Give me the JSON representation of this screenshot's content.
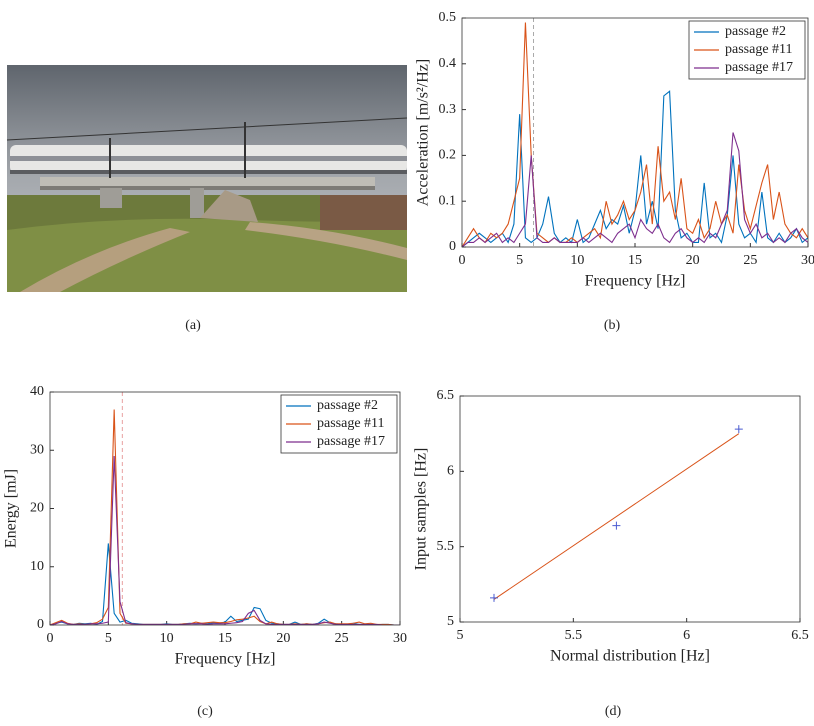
{
  "captions": [
    "(a)",
    "(b)",
    "(c)",
    "(d)"
  ],
  "chart_data": [
    {
      "type": "line",
      "xlabel": "Frequency [Hz]",
      "ylabel": "Acceleration [m/s²/Hz]",
      "xlim": [
        0,
        30
      ],
      "ylim": [
        0,
        0.5
      ],
      "xticks": [
        0,
        5,
        10,
        15,
        20,
        25,
        30
      ],
      "yticks": [
        0,
        0.1,
        0.2,
        0.3,
        0.4,
        0.5
      ],
      "vline": 6.2,
      "vline_color": "#aaaaaa",
      "legend": "upper right",
      "x": [
        0,
        0.5,
        1,
        1.5,
        2,
        2.5,
        3,
        3.5,
        4,
        4.5,
        5,
        5.5,
        6,
        6.5,
        7,
        7.5,
        8,
        8.5,
        9,
        9.5,
        10,
        10.5,
        11,
        11.5,
        12,
        12.5,
        13,
        13.5,
        14,
        14.5,
        15,
        15.5,
        16,
        16.5,
        17,
        17.5,
        18,
        18.5,
        19,
        19.5,
        20,
        20.5,
        21,
        21.5,
        22,
        22.5,
        23,
        23.5,
        24,
        24.5,
        25,
        25.5,
        26,
        26.5,
        27,
        27.5,
        28,
        28.5,
        29,
        29.5,
        30
      ],
      "series": [
        {
          "name": "passage #2",
          "color": "#0072bd",
          "values": [
            0,
            0.01,
            0.02,
            0.03,
            0.02,
            0.01,
            0.02,
            0.03,
            0.01,
            0.05,
            0.29,
            0.02,
            0.01,
            0.02,
            0.05,
            0.11,
            0.03,
            0.01,
            0.02,
            0.01,
            0.06,
            0.01,
            0.02,
            0.05,
            0.08,
            0.04,
            0.06,
            0.05,
            0.09,
            0.03,
            0.08,
            0.2,
            0.05,
            0.1,
            0.04,
            0.33,
            0.34,
            0.08,
            0.02,
            0.03,
            0.01,
            0.01,
            0.14,
            0.02,
            0.03,
            0.01,
            0.07,
            0.2,
            0.05,
            0.02,
            0.03,
            0.01,
            0.12,
            0.02,
            0.01,
            0.03,
            0.01,
            0.02,
            0.04,
            0.01,
            0.02
          ]
        },
        {
          "name": "passage #11",
          "color": "#d95319",
          "values": [
            0,
            0.02,
            0.04,
            0.02,
            0.01,
            0.03,
            0.02,
            0.03,
            0.05,
            0.1,
            0.15,
            0.49,
            0.2,
            0.03,
            0.02,
            0.01,
            0.02,
            0.01,
            0.01,
            0.02,
            0.01,
            0.02,
            0.03,
            0.04,
            0.02,
            0.1,
            0.05,
            0.07,
            0.1,
            0.06,
            0.08,
            0.12,
            0.18,
            0.05,
            0.22,
            0.1,
            0.12,
            0.06,
            0.15,
            0.04,
            0.03,
            0.06,
            0.02,
            0.04,
            0.1,
            0.05,
            0.07,
            0.03,
            0.18,
            0.08,
            0.04,
            0.09,
            0.14,
            0.18,
            0.06,
            0.12,
            0.05,
            0.03,
            0.02,
            0.04,
            0.02
          ]
        },
        {
          "name": "passage #17",
          "color": "#7e2f8e",
          "values": [
            0,
            0.01,
            0.01,
            0.02,
            0.01,
            0.02,
            0.03,
            0.01,
            0.02,
            0.01,
            0.03,
            0.05,
            0.2,
            0.02,
            0.01,
            0.01,
            0.02,
            0.01,
            0.01,
            0.01,
            0.01,
            0.02,
            0.01,
            0.02,
            0.03,
            0.02,
            0.01,
            0.03,
            0.04,
            0.05,
            0.02,
            0.06,
            0.04,
            0.03,
            0.05,
            0.02,
            0.01,
            0.03,
            0.04,
            0.02,
            0.01,
            0.02,
            0.01,
            0.03,
            0.02,
            0.05,
            0.08,
            0.25,
            0.21,
            0.06,
            0.03,
            0.05,
            0.02,
            0.03,
            0.01,
            0.02,
            0.01,
            0.03,
            0.04,
            0.02,
            0.01
          ]
        }
      ]
    },
    {
      "type": "line",
      "xlabel": "Frequency [Hz]",
      "ylabel": "Energy [mJ]",
      "xlim": [
        0,
        30
      ],
      "ylim": [
        0,
        40
      ],
      "xticks": [
        0,
        5,
        10,
        15,
        20,
        25,
        30
      ],
      "yticks": [
        0,
        10,
        20,
        30,
        40
      ],
      "vline": 6.2,
      "vline_color": "#e8a0a0",
      "legend": "upper right",
      "x": [
        0,
        0.5,
        1,
        1.5,
        2,
        2.5,
        3,
        3.5,
        4,
        4.5,
        5,
        5.5,
        6,
        6.5,
        7,
        7.5,
        8,
        8.5,
        9,
        9.5,
        10,
        10.5,
        11,
        11.5,
        12,
        12.5,
        13,
        13.5,
        14,
        14.5,
        15,
        15.5,
        16,
        16.5,
        17,
        17.5,
        18,
        18.5,
        19,
        19.5,
        20,
        20.5,
        21,
        21.5,
        22,
        22.5,
        23,
        23.5,
        24,
        24.5,
        25,
        25.5,
        26,
        26.5,
        27,
        27.5,
        28,
        28.5,
        29,
        29.5,
        30
      ],
      "series": [
        {
          "name": "passage #2",
          "color": "#0072bd",
          "values": [
            0,
            0.3,
            0.5,
            0.2,
            0.1,
            0.3,
            0.2,
            0.3,
            0.1,
            0.6,
            14,
            2,
            0.5,
            0.8,
            0.3,
            0.2,
            0.1,
            0.1,
            0.1,
            0.1,
            0.2,
            0.1,
            0.1,
            0.2,
            0.3,
            0.2,
            0.3,
            0.2,
            0.4,
            0.3,
            0.5,
            1.5,
            0.6,
            0.8,
            1,
            3,
            2.8,
            0.8,
            0.3,
            0.2,
            0.1,
            0.1,
            0.5,
            0.1,
            0.2,
            0.1,
            0.3,
            1,
            0.4,
            0.2,
            0.1,
            0.1,
            0.3,
            0.1,
            0.1,
            0.1,
            0,
            0.1,
            0.1,
            0,
            0
          ]
        },
        {
          "name": "passage #11",
          "color": "#d95319",
          "values": [
            0,
            0.4,
            0.8,
            0.3,
            0.1,
            0.2,
            0.1,
            0.2,
            0.4,
            1,
            3,
            37,
            2,
            0.3,
            0.2,
            0.1,
            0.1,
            0.1,
            0.1,
            0.1,
            0.1,
            0.1,
            0.1,
            0.2,
            0.2,
            0.5,
            0.3,
            0.4,
            0.5,
            0.4,
            0.4,
            0.6,
            0.9,
            1,
            1.2,
            1.5,
            0.6,
            0.2,
            0.5,
            0.2,
            0.1,
            0.1,
            0.2,
            0.1,
            0.2,
            0.1,
            0.2,
            0.4,
            0.5,
            0.2,
            0.2,
            0.2,
            0.3,
            0.5,
            0.2,
            0.3,
            0.1,
            0.1,
            0.1,
            0,
            0
          ]
        },
        {
          "name": "passage #17",
          "color": "#7e2f8e",
          "values": [
            0,
            0.2,
            0.6,
            0.2,
            0.1,
            0.1,
            0.1,
            0.2,
            0.2,
            0.3,
            0.5,
            29,
            4,
            0.4,
            0.2,
            0.1,
            0.1,
            0.1,
            0.1,
            0.1,
            0.1,
            0.1,
            0.1,
            0.1,
            0.2,
            0.2,
            0.2,
            0.1,
            0.2,
            0.2,
            0.2,
            0.3,
            0.4,
            0.6,
            2,
            2.5,
            0.8,
            0.2,
            0.1,
            0.1,
            0.1,
            0.1,
            0.1,
            0.1,
            0.1,
            0.1,
            0.2,
            0.5,
            0.3,
            0.1,
            0.1,
            0.1,
            0.1,
            0.1,
            0.1,
            0.1,
            0.1,
            0,
            0,
            0,
            0
          ]
        }
      ]
    },
    {
      "type": "scatter",
      "xlabel": "Normal distribution [Hz]",
      "ylabel": "Input samples [Hz]",
      "xlim": [
        5,
        6.5
      ],
      "ylim": [
        5,
        6.5
      ],
      "xticks": [
        5,
        5.5,
        6,
        6.5
      ],
      "yticks": [
        5,
        5.5,
        6,
        6.5
      ],
      "x": [
        5.15,
        5.69,
        6.23
      ],
      "values": [
        5.16,
        5.64,
        6.28
      ],
      "color": "#4a5bd1",
      "fit": {
        "x": [
          5.15,
          6.23
        ],
        "values": [
          5.15,
          6.25
        ],
        "color": "#d95319"
      }
    }
  ]
}
